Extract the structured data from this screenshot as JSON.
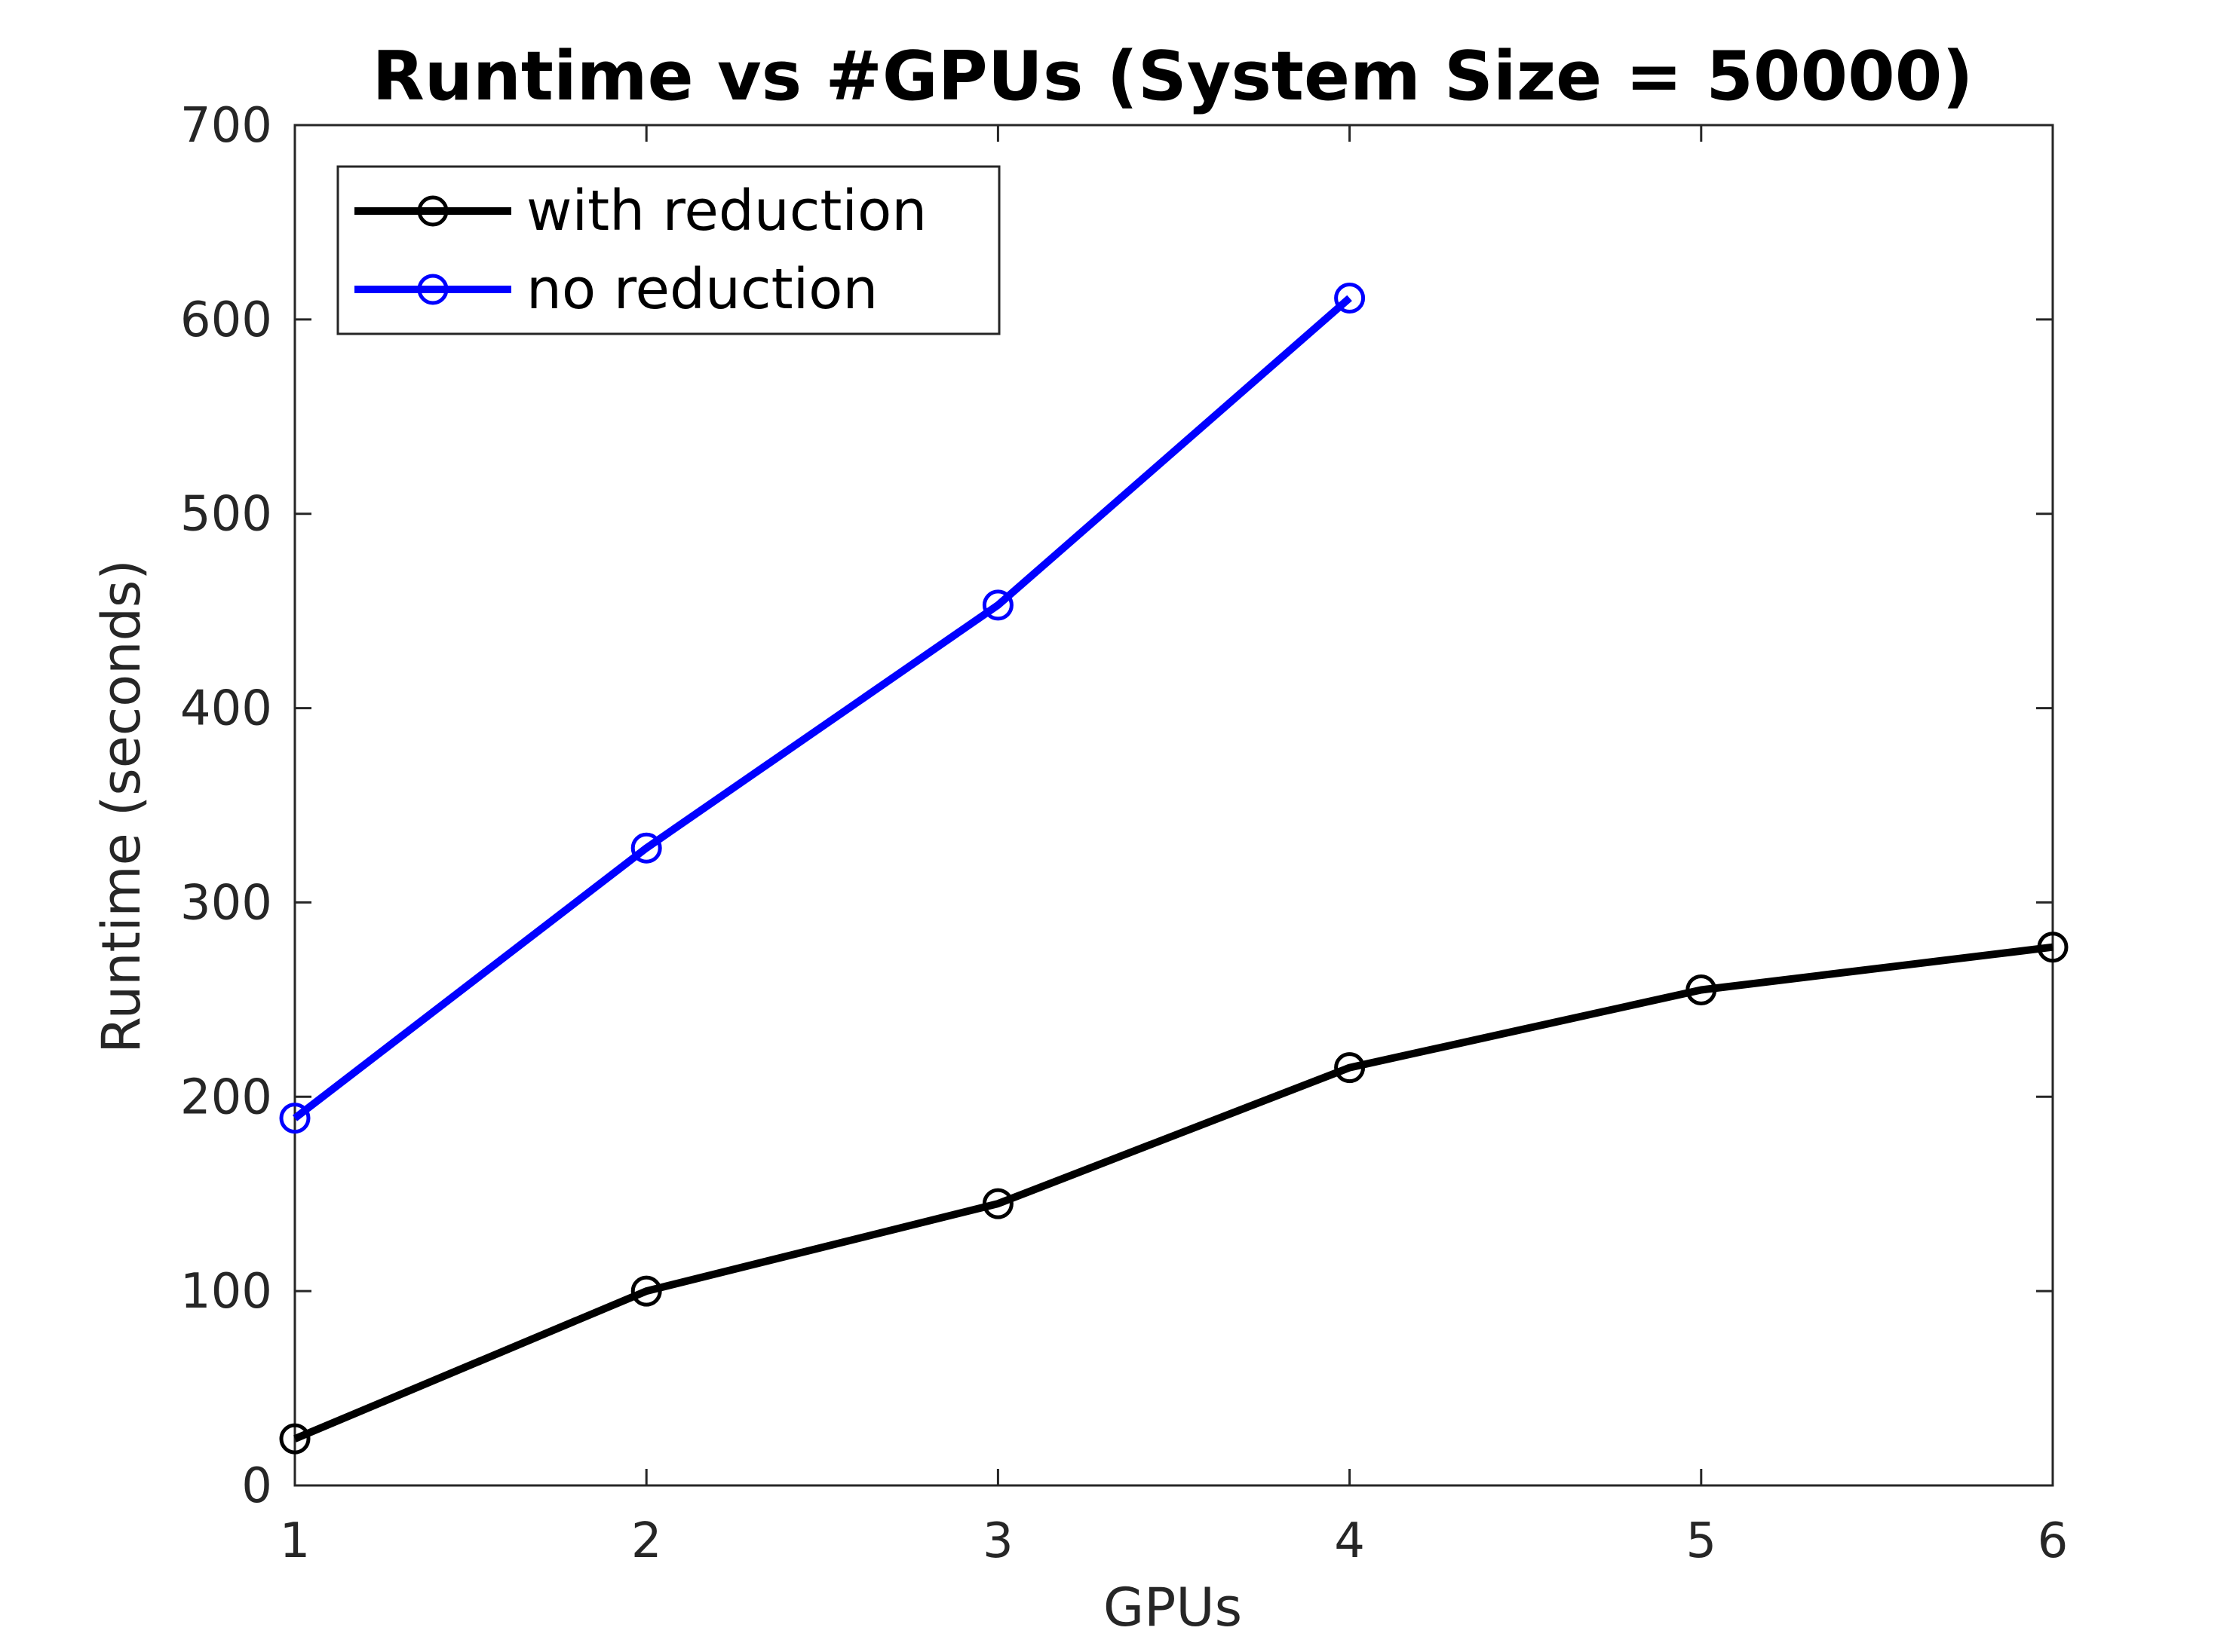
{
  "chart_data": {
    "type": "line",
    "title": "Runtime vs #GPUs (System Size = 50000)",
    "xlabel": "GPUs",
    "ylabel": "Runtime (seconds)",
    "xlim": [
      1,
      6
    ],
    "ylim": [
      0,
      700
    ],
    "xticks": [
      1,
      2,
      3,
      4,
      5,
      6
    ],
    "yticks": [
      0,
      100,
      200,
      300,
      400,
      500,
      600,
      700
    ],
    "grid": false,
    "legend_position": "top-left",
    "marker": "circle",
    "series": [
      {
        "name": "with reduction",
        "color": "#000000",
        "x": [
          1,
          2,
          3,
          4,
          5,
          6
        ],
        "y": [
          24,
          100,
          145,
          215,
          255,
          277
        ]
      },
      {
        "name": "no reduction",
        "color": "#0000ff",
        "x": [
          1,
          2,
          3,
          4
        ],
        "y": [
          189,
          328,
          453,
          611
        ]
      }
    ]
  },
  "colors": {
    "axis": "#262626",
    "background": "#ffffff",
    "title": "#000000"
  }
}
